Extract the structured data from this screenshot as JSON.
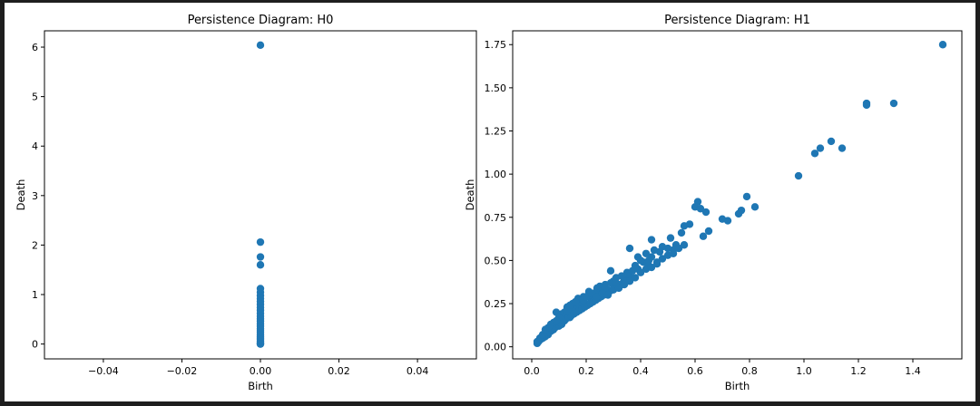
{
  "chart_data": [
    {
      "type": "scatter",
      "title": "Persistence Diagram: H0",
      "xlabel": "Birth",
      "ylabel": "Death",
      "xlim": [
        -0.055,
        0.055
      ],
      "ylim": [
        -0.3,
        6.33
      ],
      "xticks": [
        -0.04,
        -0.02,
        0.0,
        0.02,
        0.04
      ],
      "xtick_labels": [
        "−0.04",
        "−0.02",
        "0.00",
        "0.02",
        "0.04"
      ],
      "yticks": [
        0,
        1,
        2,
        3,
        4,
        5,
        6
      ],
      "ytick_labels": [
        "0",
        "1",
        "2",
        "3",
        "4",
        "5",
        "6"
      ],
      "color": "#1f77b4",
      "grid": false,
      "points": [
        [
          0,
          6.04
        ],
        [
          0,
          2.06
        ],
        [
          0,
          1.76
        ],
        [
          0,
          1.6
        ],
        [
          0,
          1.12
        ],
        [
          0,
          1.05
        ],
        [
          0,
          0.98
        ],
        [
          0,
          0.92
        ],
        [
          0,
          0.86
        ],
        [
          0,
          0.8
        ],
        [
          0,
          0.74
        ],
        [
          0,
          0.68
        ],
        [
          0,
          0.62
        ],
        [
          0,
          0.56
        ],
        [
          0,
          0.51
        ],
        [
          0,
          0.46
        ],
        [
          0,
          0.41
        ],
        [
          0,
          0.36
        ],
        [
          0,
          0.31
        ],
        [
          0,
          0.27
        ],
        [
          0,
          0.23
        ],
        [
          0,
          0.19
        ],
        [
          0,
          0.15
        ],
        [
          0,
          0.12
        ],
        [
          0,
          0.09
        ],
        [
          0,
          0.06
        ],
        [
          0,
          0.03
        ],
        [
          0,
          0.01
        ],
        [
          0,
          0.0
        ]
      ]
    },
    {
      "type": "scatter",
      "title": "Persistence Diagram: H1",
      "xlabel": "Birth",
      "ylabel": "Death",
      "xlim": [
        -0.07,
        1.58
      ],
      "ylim": [
        -0.07,
        1.83
      ],
      "xticks": [
        0.0,
        0.2,
        0.4,
        0.6,
        0.8,
        1.0,
        1.2,
        1.4
      ],
      "xtick_labels": [
        "0.0",
        "0.2",
        "0.4",
        "0.6",
        "0.8",
        "1.0",
        "1.2",
        "1.4"
      ],
      "yticks": [
        0.0,
        0.25,
        0.5,
        0.75,
        1.0,
        1.25,
        1.5,
        1.75
      ],
      "ytick_labels": [
        "0.00",
        "0.25",
        "0.50",
        "0.75",
        "1.00",
        "1.25",
        "1.50",
        "1.75"
      ],
      "color": "#1f77b4",
      "grid": false,
      "points": [
        [
          1.51,
          1.75
        ],
        [
          1.33,
          1.41
        ],
        [
          1.23,
          1.41
        ],
        [
          1.23,
          1.4
        ],
        [
          1.1,
          1.19
        ],
        [
          1.06,
          1.15
        ],
        [
          1.04,
          1.12
        ],
        [
          1.14,
          1.15
        ],
        [
          0.98,
          0.99
        ],
        [
          0.79,
          0.87
        ],
        [
          0.82,
          0.81
        ],
        [
          0.77,
          0.79
        ],
        [
          0.76,
          0.77
        ],
        [
          0.7,
          0.74
        ],
        [
          0.72,
          0.73
        ],
        [
          0.61,
          0.84
        ],
        [
          0.6,
          0.81
        ],
        [
          0.62,
          0.8
        ],
        [
          0.64,
          0.78
        ],
        [
          0.65,
          0.67
        ],
        [
          0.63,
          0.64
        ],
        [
          0.58,
          0.71
        ],
        [
          0.56,
          0.7
        ],
        [
          0.55,
          0.66
        ],
        [
          0.51,
          0.63
        ],
        [
          0.5,
          0.57
        ],
        [
          0.53,
          0.59
        ],
        [
          0.48,
          0.58
        ],
        [
          0.44,
          0.62
        ],
        [
          0.45,
          0.56
        ],
        [
          0.44,
          0.52
        ],
        [
          0.42,
          0.54
        ],
        [
          0.41,
          0.49
        ],
        [
          0.39,
          0.52
        ],
        [
          0.36,
          0.57
        ],
        [
          0.4,
          0.5
        ],
        [
          0.38,
          0.47
        ],
        [
          0.46,
          0.49
        ],
        [
          0.47,
          0.55
        ],
        [
          0.52,
          0.56
        ],
        [
          0.43,
          0.47
        ],
        [
          0.35,
          0.43
        ],
        [
          0.35,
          0.38
        ],
        [
          0.34,
          0.39
        ],
        [
          0.36,
          0.41
        ],
        [
          0.33,
          0.36
        ],
        [
          0.32,
          0.35
        ],
        [
          0.31,
          0.4
        ],
        [
          0.29,
          0.44
        ],
        [
          0.3,
          0.38
        ],
        [
          0.28,
          0.33
        ],
        [
          0.27,
          0.36
        ],
        [
          0.26,
          0.33
        ],
        [
          0.25,
          0.32
        ],
        [
          0.24,
          0.34
        ],
        [
          0.23,
          0.3
        ],
        [
          0.22,
          0.27
        ],
        [
          0.21,
          0.3
        ],
        [
          0.2,
          0.25
        ],
        [
          0.19,
          0.29
        ],
        [
          0.18,
          0.26
        ],
        [
          0.18,
          0.22
        ],
        [
          0.17,
          0.24
        ],
        [
          0.16,
          0.21
        ],
        [
          0.15,
          0.25
        ],
        [
          0.15,
          0.19
        ],
        [
          0.14,
          0.22
        ],
        [
          0.14,
          0.17
        ],
        [
          0.13,
          0.19
        ],
        [
          0.12,
          0.18
        ],
        [
          0.12,
          0.15
        ],
        [
          0.11,
          0.16
        ],
        [
          0.11,
          0.13
        ],
        [
          0.1,
          0.15
        ],
        [
          0.1,
          0.12
        ],
        [
          0.09,
          0.2
        ],
        [
          0.09,
          0.12
        ],
        [
          0.08,
          0.13
        ],
        [
          0.08,
          0.1
        ],
        [
          0.07,
          0.11
        ],
        [
          0.07,
          0.09
        ],
        [
          0.06,
          0.09
        ],
        [
          0.06,
          0.07
        ],
        [
          0.05,
          0.08
        ],
        [
          0.05,
          0.06
        ],
        [
          0.04,
          0.06
        ],
        [
          0.04,
          0.05
        ],
        [
          0.03,
          0.04
        ],
        [
          0.03,
          0.05
        ],
        [
          0.02,
          0.03
        ],
        [
          0.02,
          0.02
        ],
        [
          0.025,
          0.03
        ],
        [
          0.035,
          0.045
        ],
        [
          0.045,
          0.055
        ],
        [
          0.055,
          0.075
        ],
        [
          0.065,
          0.085
        ],
        [
          0.075,
          0.095
        ],
        [
          0.085,
          0.11
        ],
        [
          0.095,
          0.13
        ],
        [
          0.105,
          0.14
        ],
        [
          0.115,
          0.15
        ],
        [
          0.125,
          0.16
        ],
        [
          0.135,
          0.17
        ],
        [
          0.145,
          0.18
        ],
        [
          0.155,
          0.19
        ],
        [
          0.165,
          0.2
        ],
        [
          0.175,
          0.21
        ],
        [
          0.185,
          0.22
        ],
        [
          0.195,
          0.23
        ],
        [
          0.205,
          0.24
        ],
        [
          0.215,
          0.25
        ],
        [
          0.225,
          0.26
        ],
        [
          0.235,
          0.27
        ],
        [
          0.245,
          0.28
        ],
        [
          0.255,
          0.29
        ],
        [
          0.265,
          0.3
        ],
        [
          0.275,
          0.31
        ],
        [
          0.285,
          0.32
        ],
        [
          0.295,
          0.33
        ],
        [
          0.305,
          0.34
        ],
        [
          0.315,
          0.35
        ],
        [
          0.325,
          0.36
        ],
        [
          0.335,
          0.37
        ],
        [
          0.345,
          0.38
        ],
        [
          0.13,
          0.23
        ],
        [
          0.17,
          0.28
        ],
        [
          0.21,
          0.32
        ],
        [
          0.25,
          0.35
        ],
        [
          0.29,
          0.37
        ],
        [
          0.11,
          0.19
        ],
        [
          0.15,
          0.23
        ],
        [
          0.19,
          0.27
        ],
        [
          0.23,
          0.31
        ],
        [
          0.27,
          0.34
        ],
        [
          0.31,
          0.37
        ],
        [
          0.33,
          0.41
        ],
        [
          0.37,
          0.44
        ],
        [
          0.39,
          0.45
        ],
        [
          0.43,
          0.5
        ],
        [
          0.06,
          0.11
        ],
        [
          0.08,
          0.14
        ],
        [
          0.1,
          0.17
        ],
        [
          0.12,
          0.2
        ],
        [
          0.14,
          0.24
        ],
        [
          0.16,
          0.26
        ],
        [
          0.2,
          0.29
        ],
        [
          0.22,
          0.31
        ],
        [
          0.24,
          0.29
        ],
        [
          0.26,
          0.31
        ],
        [
          0.28,
          0.3
        ],
        [
          0.3,
          0.33
        ],
        [
          0.32,
          0.34
        ],
        [
          0.34,
          0.36
        ],
        [
          0.36,
          0.38
        ],
        [
          0.38,
          0.4
        ],
        [
          0.4,
          0.43
        ],
        [
          0.42,
          0.45
        ],
        [
          0.44,
          0.46
        ],
        [
          0.46,
          0.48
        ],
        [
          0.48,
          0.51
        ],
        [
          0.5,
          0.53
        ],
        [
          0.52,
          0.54
        ],
        [
          0.54,
          0.57
        ],
        [
          0.56,
          0.59
        ],
        [
          0.04,
          0.07
        ],
        [
          0.05,
          0.1
        ],
        [
          0.07,
          0.13
        ],
        [
          0.09,
          0.15
        ],
        [
          0.13,
          0.21
        ]
      ]
    }
  ]
}
